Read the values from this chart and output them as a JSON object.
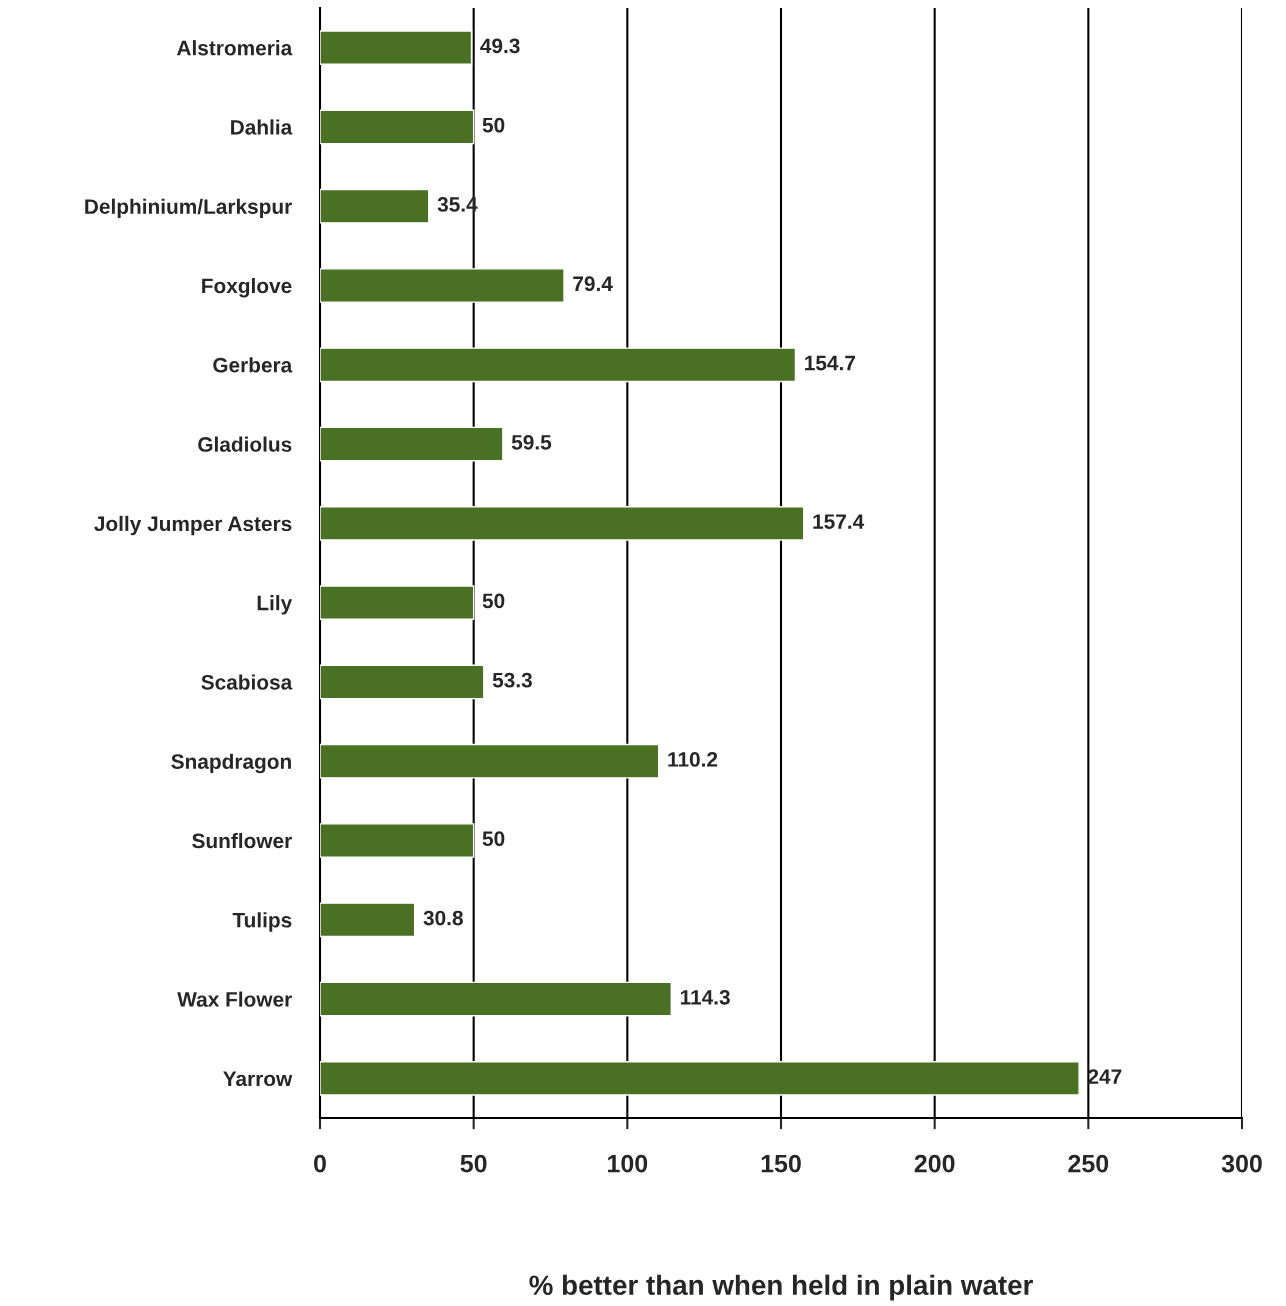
{
  "chart_data": {
    "type": "bar",
    "orientation": "horizontal",
    "xlabel": "% better than when held in plain water",
    "categories": [
      "Alstromeria",
      "Dahlia",
      "Delphinium/Larkspur",
      "Foxglove",
      "Gerbera",
      "Gladiolus",
      "Jolly Jumper Asters",
      "Lily",
      "Scabiosa",
      "Snapdragon",
      "Sunflower",
      "Tulips",
      "Wax Flower",
      "Yarrow"
    ],
    "values": [
      49.3,
      50,
      35.4,
      79.4,
      154.7,
      59.5,
      157.4,
      50,
      53.3,
      110.2,
      50,
      30.8,
      114.3,
      247
    ],
    "color": "#4a7023",
    "data_labels": true,
    "xlim": [
      0,
      300
    ],
    "xticks": [
      0,
      50,
      100,
      150,
      200,
      250,
      300
    ],
    "grid": "x",
    "legend": false
  }
}
